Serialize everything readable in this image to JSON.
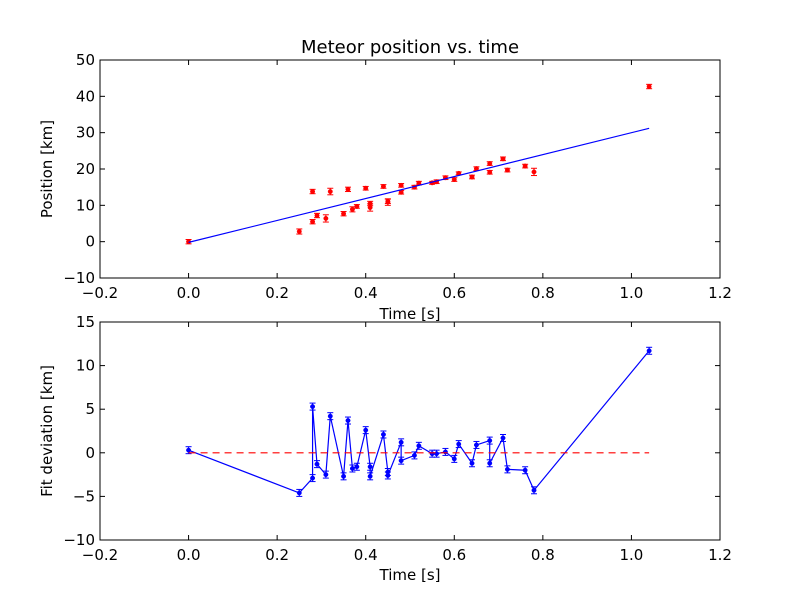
{
  "chart_data": [
    {
      "type": "scatter",
      "title": "Meteor position vs. time",
      "xlabel": "Time [s]",
      "ylabel": "Position [km]",
      "xlim": [
        -0.2,
        1.2
      ],
      "ylim": [
        -10,
        50
      ],
      "xticks": [
        -0.2,
        0.0,
        0.2,
        0.4,
        0.6,
        0.8,
        1.0,
        1.2
      ],
      "xtick_labels": [
        "−0.2",
        "0.0",
        "0.2",
        "0.4",
        "0.6",
        "0.8",
        "1.0",
        "1.2"
      ],
      "yticks": [
        -10,
        0,
        10,
        20,
        30,
        40,
        50
      ],
      "ytick_labels": [
        "−10",
        "0",
        "10",
        "20",
        "30",
        "40",
        "50"
      ],
      "grid": false,
      "series": [
        {
          "kind": "points_with_errorbars",
          "color": "#ff0000",
          "x": [
            0.0,
            0.25,
            0.28,
            0.28,
            0.29,
            0.31,
            0.32,
            0.35,
            0.36,
            0.37,
            0.38,
            0.4,
            0.41,
            0.41,
            0.44,
            0.45,
            0.45,
            0.48,
            0.48,
            0.51,
            0.52,
            0.55,
            0.56,
            0.58,
            0.6,
            0.61,
            0.64,
            0.65,
            0.68,
            0.68,
            0.71,
            0.72,
            0.76,
            0.78,
            1.04
          ],
          "y": [
            0.0,
            2.8,
            5.5,
            13.8,
            7.2,
            6.4,
            13.8,
            7.7,
            14.4,
            8.9,
            9.7,
            14.7,
            9.4,
            10.5,
            15.2,
            10.9,
            11.1,
            13.6,
            15.5,
            15.0,
            16.1,
            16.2,
            16.5,
            17.6,
            17.1,
            18.8,
            17.8,
            20.1,
            19.1,
            21.5,
            22.8,
            19.7,
            20.8,
            19.2,
            42.7
          ],
          "err": [
            0.6,
            0.7,
            0.6,
            0.6,
            0.6,
            1.0,
            0.9,
            0.6,
            0.6,
            0.7,
            0.5,
            0.5,
            1.0,
            0.6,
            0.5,
            0.9,
            0.6,
            0.5,
            0.5,
            0.5,
            0.5,
            0.4,
            0.5,
            0.5,
            0.5,
            0.4,
            0.5,
            0.5,
            0.5,
            0.5,
            0.5,
            0.5,
            0.5,
            1.0,
            0.6
          ]
        },
        {
          "kind": "line",
          "color": "#0000ff",
          "x": [
            0.0,
            1.04
          ],
          "y": [
            -0.2,
            31.2
          ]
        }
      ]
    },
    {
      "type": "line",
      "title": "",
      "xlabel": "Time [s]",
      "ylabel": "Fit deviation [km]",
      "xlim": [
        -0.2,
        1.2
      ],
      "ylim": [
        -10,
        15
      ],
      "xticks": [
        -0.2,
        0.0,
        0.2,
        0.4,
        0.6,
        0.8,
        1.0,
        1.2
      ],
      "xtick_labels": [
        "−0.2",
        "0.0",
        "0.2",
        "0.4",
        "0.6",
        "0.8",
        "1.0",
        "1.2"
      ],
      "yticks": [
        -10,
        -5,
        0,
        5,
        10,
        15
      ],
      "ytick_labels": [
        "−10",
        "−5",
        "0",
        "5",
        "10",
        "15"
      ],
      "grid": false,
      "series": [
        {
          "kind": "line_with_errorbars",
          "color": "#0000ff",
          "x": [
            0.0,
            0.25,
            0.28,
            0.28,
            0.29,
            0.31,
            0.32,
            0.35,
            0.36,
            0.37,
            0.38,
            0.4,
            0.41,
            0.41,
            0.44,
            0.45,
            0.45,
            0.48,
            0.48,
            0.51,
            0.52,
            0.55,
            0.56,
            0.58,
            0.6,
            0.61,
            0.64,
            0.65,
            0.68,
            0.68,
            0.71,
            0.72,
            0.76,
            0.78,
            1.04
          ],
          "y": [
            0.3,
            -4.6,
            -2.9,
            5.3,
            -1.3,
            -2.5,
            4.2,
            -2.7,
            3.7,
            -1.8,
            -1.6,
            2.6,
            -1.6,
            -2.7,
            2.1,
            -2.2,
            -2.6,
            1.2,
            -0.9,
            -0.3,
            0.8,
            -0.1,
            -0.1,
            0.1,
            -0.7,
            1.0,
            -1.2,
            0.9,
            1.4,
            -1.2,
            1.7,
            -1.9,
            -2.0,
            -4.3,
            11.7
          ]
        },
        {
          "kind": "dashed_line",
          "color": "#ff0000",
          "x": [
            0.0,
            1.04
          ],
          "y": [
            0.0,
            0.0
          ]
        }
      ]
    }
  ]
}
